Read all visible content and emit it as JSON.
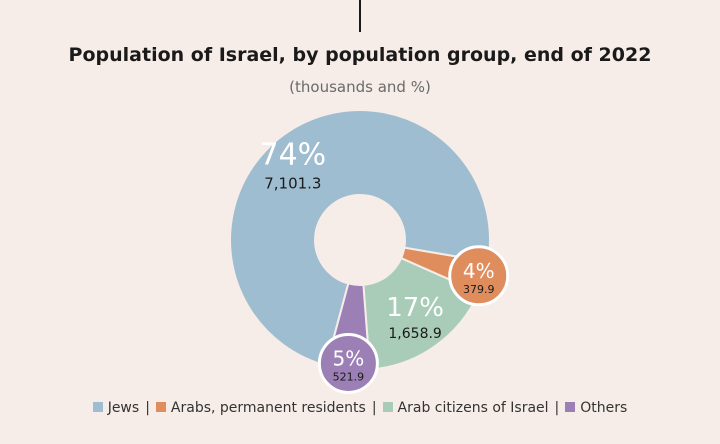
{
  "chart_data": {
    "type": "pie",
    "title": "Population of Israel, by population group, end of 2022",
    "subtitle": "(thousands and %)",
    "slices": [
      {
        "name": "Arabs, permanent residents",
        "value": 379.9,
        "percent_label": "4%",
        "value_label": "379.9",
        "color": "#e08d5e"
      },
      {
        "name": "Arab citizens of Israel",
        "value": 1658.9,
        "percent_label": "17%",
        "value_label": "1,658.9",
        "color": "#a8ccb8"
      },
      {
        "name": "Others",
        "value": 521.9,
        "percent_label": "5%",
        "value_label": "521.9",
        "color": "#9b7fb5"
      },
      {
        "name": "Jews",
        "value": 7101.3,
        "percent_label": "74%",
        "value_label": "7,101.3",
        "color": "#9fbdd0"
      }
    ],
    "legend": [
      "Jews",
      "Arabs, permanent residents",
      "Arab citizens of Israel",
      "Others"
    ],
    "legend_colors": [
      "#9fbdd0",
      "#e08d5e",
      "#a8ccb8",
      "#9b7fb5"
    ]
  }
}
